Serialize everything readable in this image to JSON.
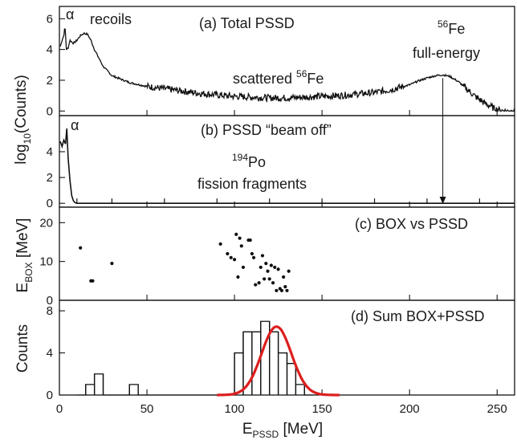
{
  "figure": {
    "x_axis": {
      "label_main": "E",
      "label_sub": "PSSD",
      "label_unit": " [MeV]",
      "range": [
        0,
        260
      ],
      "ticks": [
        "0",
        "50",
        "100",
        "150",
        "200",
        "250"
      ]
    },
    "marker_line_x_mev": 219
  },
  "chart_data": [
    {
      "id": "a",
      "type": "line",
      "title": "(a) Total PSSD",
      "ylabel_main": "log",
      "ylabel_sub": "10",
      "ylabel_rest": "(Counts)",
      "ylim": [
        -0.3,
        6.8
      ],
      "yticks": [
        "0",
        "2",
        "4",
        "6"
      ],
      "annotations": {
        "alpha": "α",
        "recoils": "recoils",
        "scattered_pre": "scattered ",
        "scattered_sup": "56",
        "scattered_el": "Fe",
        "fe_sup": "56",
        "fe_el": "Fe",
        "fe_line2": "full-energy"
      },
      "x": [
        0.5,
        1.5,
        2.5,
        3.2,
        4,
        5,
        6,
        7,
        8,
        10,
        12,
        14,
        16,
        18,
        20,
        25,
        30,
        40,
        50,
        60,
        70,
        80,
        90,
        100,
        110,
        120,
        130,
        140,
        150,
        160,
        170,
        180,
        190,
        200,
        205,
        210,
        215,
        219,
        223,
        228,
        233,
        238,
        243,
        248,
        252,
        256,
        260
      ],
      "y": [
        4.2,
        4.6,
        4.9,
        5.5,
        4.0,
        4.1,
        4.6,
        4.5,
        4.4,
        4.6,
        4.9,
        5.05,
        5.0,
        4.6,
        4.0,
        2.9,
        2.3,
        1.85,
        1.6,
        1.45,
        1.3,
        1.15,
        1.05,
        0.95,
        0.9,
        0.85,
        0.85,
        0.9,
        0.95,
        1.0,
        1.1,
        1.2,
        1.4,
        1.7,
        1.95,
        2.15,
        2.3,
        2.35,
        2.25,
        1.9,
        1.4,
        0.9,
        0.5,
        0.2,
        0.05,
        0.0,
        0.0
      ]
    },
    {
      "id": "b",
      "type": "line",
      "title_pre": "(b) PSSD ",
      "title_quoted": "“beam off”",
      "ylim": [
        -0.3,
        6.8
      ],
      "yticks": [
        "0",
        "2",
        "4"
      ],
      "annotations": {
        "alpha": "α",
        "po_sup": "194",
        "po_el": "Po",
        "po_line2": "fission fragments"
      },
      "x": [
        0.5,
        1.5,
        2.5,
        3.5,
        4.2,
        5,
        6,
        7,
        8,
        9,
        10,
        12,
        15,
        20,
        30,
        60,
        100,
        150,
        200,
        260
      ],
      "y": [
        4.8,
        4.4,
        4.9,
        4.6,
        5.8,
        3.5,
        1.8,
        0.6,
        0.2,
        0.05,
        0.0,
        0.0,
        0.0,
        0.0,
        0.0,
        0.0,
        0.0,
        0.0,
        0.0,
        0.0
      ],
      "zero_ticks_x": [
        10,
        30,
        60,
        90,
        120,
        150,
        180,
        210,
        240
      ]
    },
    {
      "id": "c",
      "type": "scatter",
      "title": "(c) BOX vs PSSD",
      "ylabel_main": "E",
      "ylabel_sub": "BOX",
      "ylabel_rest": " [MeV]",
      "ylim": [
        0,
        24
      ],
      "yticks": [
        "0",
        "10",
        "20"
      ],
      "points": [
        [
          12,
          13.5
        ],
        [
          18,
          5
        ],
        [
          19,
          5
        ],
        [
          30,
          9.5
        ],
        [
          92,
          14.5
        ],
        [
          96,
          12
        ],
        [
          98,
          11
        ],
        [
          100,
          10.5
        ],
        [
          101,
          17
        ],
        [
          102,
          6
        ],
        [
          103,
          16
        ],
        [
          104,
          14
        ],
        [
          105,
          8.5
        ],
        [
          108,
          15.5
        ],
        [
          109,
          15.5
        ],
        [
          110,
          12
        ],
        [
          111,
          11
        ],
        [
          112,
          4
        ],
        [
          114,
          4.5
        ],
        [
          115,
          8.5
        ],
        [
          116,
          11.5
        ],
        [
          117,
          5.5
        ],
        [
          118,
          9.5
        ],
        [
          119,
          7.5
        ],
        [
          120,
          5.5
        ],
        [
          121,
          9
        ],
        [
          122,
          4.5
        ],
        [
          123,
          8.5
        ],
        [
          124,
          2.5
        ],
        [
          125,
          8
        ],
        [
          126,
          3
        ],
        [
          127,
          2.5
        ],
        [
          128,
          6
        ],
        [
          129,
          3.5
        ],
        [
          130,
          2.5
        ],
        [
          131,
          7.5
        ]
      ]
    },
    {
      "id": "d",
      "type": "bar",
      "title": "(d) Sum BOX+PSSD",
      "ylabel": "Counts",
      "ylim": [
        0,
        9
      ],
      "yticks": [
        "0",
        "4",
        "8"
      ],
      "bin_edges": [
        10,
        15,
        20,
        25,
        30,
        35,
        40,
        45,
        50,
        55,
        60,
        65,
        70,
        75,
        80,
        85,
        90,
        95,
        100,
        105,
        110,
        115,
        120,
        125,
        130,
        135,
        140,
        145
      ],
      "counts": [
        0,
        1,
        2,
        0,
        0,
        0,
        1,
        0,
        0,
        0,
        0,
        0,
        0,
        0,
        0,
        0,
        0,
        0,
        4,
        6,
        6,
        7,
        6,
        4,
        3,
        1,
        0
      ],
      "fit": {
        "name": "",
        "amplitude": 6.5,
        "mean": 124,
        "sigma": 8.5,
        "color": "#dd1e1e"
      }
    }
  ]
}
